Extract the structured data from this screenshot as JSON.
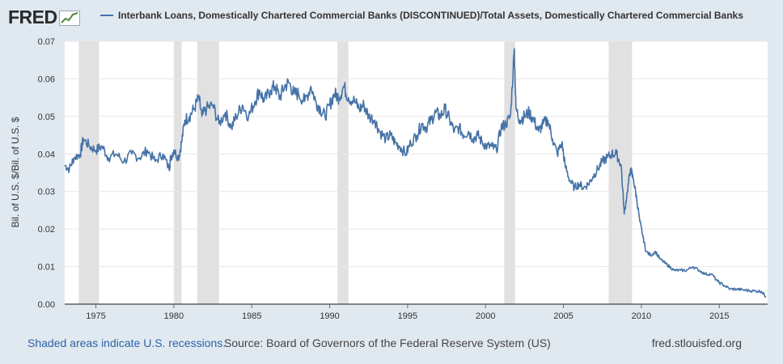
{
  "header": {
    "logo_text": "FRED",
    "legend_label": "Interbank Loans, Domestically Chartered Commercial Banks (DISCONTINUED)/Total Assets, Domestically Chartered Commercial Banks",
    "series_color": "#4572a7"
  },
  "footer": {
    "recession_note": "Shaded areas indicate U.S. recessions.",
    "source": "Source: Board of Governors of the Federal Reserve System (US)",
    "site": "fred.stlouisfed.org"
  },
  "chart_data": {
    "type": "line",
    "title": "",
    "xlabel": "",
    "ylabel": "Bil. of U.S. $/Bil. of U.S. $",
    "xlim": [
      1973.0,
      2018.1
    ],
    "ylim": [
      0,
      0.07
    ],
    "yticks": [
      "0.00",
      "0.01",
      "0.02",
      "0.03",
      "0.04",
      "0.05",
      "0.06",
      "0.07"
    ],
    "xticks": [
      "1975",
      "1980",
      "1985",
      "1990",
      "1995",
      "2000",
      "2005",
      "2010",
      "2015"
    ],
    "grid": true,
    "recessions": [
      [
        1973.9,
        1975.2
      ],
      [
        1980.0,
        1980.5
      ],
      [
        1981.5,
        1982.9
      ],
      [
        1990.5,
        1991.2
      ],
      [
        2001.2,
        2001.9
      ],
      [
        2007.9,
        2009.4
      ]
    ],
    "series": [
      {
        "name": "Interbank Loans, Domestically Chartered Commercial Banks (DISCONTINUED)/Total Assets, Domestically Chartered Commercial Banks",
        "points": [
          [
            1973.0,
            0.037
          ],
          [
            1973.3,
            0.036
          ],
          [
            1973.6,
            0.039
          ],
          [
            1974.0,
            0.04
          ],
          [
            1974.2,
            0.044
          ],
          [
            1974.6,
            0.042
          ],
          [
            1975.0,
            0.041
          ],
          [
            1975.4,
            0.042
          ],
          [
            1975.8,
            0.039
          ],
          [
            1976.3,
            0.04
          ],
          [
            1976.8,
            0.038
          ],
          [
            1977.3,
            0.04
          ],
          [
            1977.8,
            0.039
          ],
          [
            1978.3,
            0.041
          ],
          [
            1978.8,
            0.038
          ],
          [
            1979.3,
            0.04
          ],
          [
            1979.7,
            0.036
          ],
          [
            1979.8,
            0.039
          ],
          [
            1980.0,
            0.041
          ],
          [
            1980.3,
            0.039
          ],
          [
            1980.5,
            0.043
          ],
          [
            1980.7,
            0.049
          ],
          [
            1981.0,
            0.05
          ],
          [
            1981.3,
            0.052
          ],
          [
            1981.6,
            0.055
          ],
          [
            1981.8,
            0.05
          ],
          [
            1982.1,
            0.052
          ],
          [
            1982.5,
            0.053
          ],
          [
            1982.9,
            0.048
          ],
          [
            1983.3,
            0.051
          ],
          [
            1983.7,
            0.047
          ],
          [
            1984.0,
            0.05
          ],
          [
            1984.4,
            0.053
          ],
          [
            1984.8,
            0.05
          ],
          [
            1985.2,
            0.054
          ],
          [
            1985.5,
            0.057
          ],
          [
            1985.8,
            0.054
          ],
          [
            1986.2,
            0.057
          ],
          [
            1986.5,
            0.058
          ],
          [
            1986.8,
            0.055
          ],
          [
            1987.1,
            0.058
          ],
          [
            1987.4,
            0.059
          ],
          [
            1987.7,
            0.056
          ],
          [
            1988.0,
            0.056
          ],
          [
            1988.4,
            0.054
          ],
          [
            1988.8,
            0.058
          ],
          [
            1989.1,
            0.054
          ],
          [
            1989.4,
            0.052
          ],
          [
            1989.7,
            0.05
          ],
          [
            1990.0,
            0.053
          ],
          [
            1990.3,
            0.056
          ],
          [
            1990.6,
            0.055
          ],
          [
            1990.9,
            0.058
          ],
          [
            1991.2,
            0.055
          ],
          [
            1991.6,
            0.054
          ],
          [
            1991.9,
            0.052
          ],
          [
            1992.2,
            0.053
          ],
          [
            1992.5,
            0.05
          ],
          [
            1992.9,
            0.049
          ],
          [
            1993.2,
            0.046
          ],
          [
            1993.6,
            0.044
          ],
          [
            1993.9,
            0.045
          ],
          [
            1994.2,
            0.043
          ],
          [
            1994.5,
            0.042
          ],
          [
            1994.9,
            0.04
          ],
          [
            1995.2,
            0.043
          ],
          [
            1995.6,
            0.045
          ],
          [
            1995.9,
            0.048
          ],
          [
            1996.2,
            0.047
          ],
          [
            1996.5,
            0.049
          ],
          [
            1996.8,
            0.051
          ],
          [
            1997.1,
            0.05
          ],
          [
            1997.4,
            0.052
          ],
          [
            1997.7,
            0.049
          ],
          [
            1998.0,
            0.046
          ],
          [
            1998.3,
            0.047
          ],
          [
            1998.6,
            0.045
          ],
          [
            1998.9,
            0.046
          ],
          [
            1999.2,
            0.044
          ],
          [
            1999.5,
            0.045
          ],
          [
            1999.8,
            0.043
          ],
          [
            2000.1,
            0.042
          ],
          [
            2000.4,
            0.042
          ],
          [
            2000.7,
            0.041
          ],
          [
            2001.0,
            0.047
          ],
          [
            2001.3,
            0.048
          ],
          [
            2001.6,
            0.05
          ],
          [
            2001.85,
            0.068
          ],
          [
            2001.95,
            0.052
          ],
          [
            2002.2,
            0.049
          ],
          [
            2002.5,
            0.05
          ],
          [
            2002.8,
            0.051
          ],
          [
            2003.1,
            0.049
          ],
          [
            2003.4,
            0.046
          ],
          [
            2003.7,
            0.048
          ],
          [
            2004.0,
            0.049
          ],
          [
            2004.3,
            0.044
          ],
          [
            2004.6,
            0.04
          ],
          [
            2004.9,
            0.043
          ],
          [
            2005.1,
            0.037
          ],
          [
            2005.4,
            0.033
          ],
          [
            2005.7,
            0.031
          ],
          [
            2006.0,
            0.032
          ],
          [
            2006.3,
            0.031
          ],
          [
            2006.6,
            0.032
          ],
          [
            2006.9,
            0.034
          ],
          [
            2007.2,
            0.036
          ],
          [
            2007.5,
            0.038
          ],
          [
            2007.8,
            0.039
          ],
          [
            2008.1,
            0.04
          ],
          [
            2008.4,
            0.04
          ],
          [
            2008.7,
            0.037
          ],
          [
            2008.9,
            0.024
          ],
          [
            2009.1,
            0.03
          ],
          [
            2009.3,
            0.036
          ],
          [
            2009.5,
            0.033
          ],
          [
            2009.7,
            0.028
          ],
          [
            2009.9,
            0.022
          ],
          [
            2010.1,
            0.018
          ],
          [
            2010.3,
            0.014
          ],
          [
            2010.6,
            0.013
          ],
          [
            2010.9,
            0.014
          ],
          [
            2011.2,
            0.012
          ],
          [
            2011.5,
            0.011
          ],
          [
            2011.8,
            0.01
          ],
          [
            2012.1,
            0.009
          ],
          [
            2012.5,
            0.009
          ],
          [
            2012.9,
            0.009
          ],
          [
            2013.3,
            0.01
          ],
          [
            2013.7,
            0.009
          ],
          [
            2014.1,
            0.008
          ],
          [
            2014.5,
            0.008
          ],
          [
            2014.9,
            0.006
          ],
          [
            2015.3,
            0.005
          ],
          [
            2015.7,
            0.004
          ],
          [
            2016.1,
            0.004
          ],
          [
            2016.5,
            0.0038
          ],
          [
            2016.9,
            0.0036
          ],
          [
            2017.3,
            0.0035
          ],
          [
            2017.7,
            0.0034
          ],
          [
            2018.0,
            0.002
          ]
        ]
      }
    ]
  }
}
